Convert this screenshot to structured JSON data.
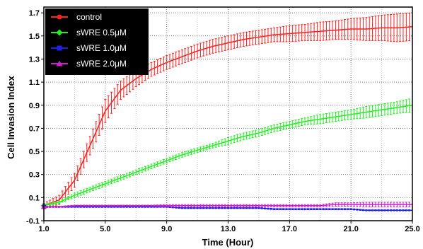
{
  "chart_data": {
    "type": "line",
    "xlabel": "Time (Hour)",
    "ylabel": "Cell Invasion Index",
    "xlim": [
      1.0,
      25.0
    ],
    "ylim": [
      -0.1,
      1.75
    ],
    "x_ticks": [
      "1.0",
      "5.0",
      "9.0",
      "13.0",
      "17.0",
      "21.0",
      "25.0"
    ],
    "y_ticks": [
      "-0.1",
      "0.1",
      "0.3",
      "0.5",
      "0.7",
      "0.9",
      "1.1",
      "1.3",
      "1.5",
      "1.7"
    ],
    "grid": true,
    "legend_position": "top-left",
    "background": "#ffffff",
    "legend_background": "#000000",
    "series": [
      {
        "name": "control",
        "color": "#ff2020",
        "marker": "circle",
        "x": [
          1,
          2,
          3,
          4,
          5,
          6,
          7,
          8,
          9,
          10,
          11,
          12,
          13,
          14,
          15,
          16,
          17,
          18,
          19,
          20,
          21,
          22,
          23,
          24,
          25
        ],
        "y": [
          0.03,
          0.08,
          0.25,
          0.55,
          0.85,
          1.03,
          1.13,
          1.21,
          1.27,
          1.32,
          1.37,
          1.41,
          1.44,
          1.47,
          1.49,
          1.51,
          1.52,
          1.53,
          1.54,
          1.55,
          1.56,
          1.56,
          1.57,
          1.57,
          1.58
        ],
        "err": [
          0.02,
          0.04,
          0.06,
          0.08,
          0.1,
          0.08,
          0.07,
          0.06,
          0.06,
          0.06,
          0.06,
          0.06,
          0.06,
          0.06,
          0.06,
          0.06,
          0.07,
          0.07,
          0.08,
          0.08,
          0.09,
          0.1,
          0.11,
          0.12,
          0.12
        ]
      },
      {
        "name": "sWRE 0.5μM",
        "color": "#22ee22",
        "marker": "diamond",
        "x": [
          1,
          2,
          3,
          4,
          5,
          6,
          7,
          8,
          9,
          10,
          11,
          12,
          13,
          14,
          15,
          16,
          17,
          18,
          19,
          20,
          21,
          22,
          23,
          24,
          25
        ],
        "y": [
          0.03,
          0.06,
          0.12,
          0.17,
          0.22,
          0.27,
          0.32,
          0.37,
          0.42,
          0.47,
          0.51,
          0.55,
          0.59,
          0.63,
          0.66,
          0.7,
          0.73,
          0.76,
          0.78,
          0.8,
          0.82,
          0.84,
          0.86,
          0.88,
          0.9
        ],
        "err": [
          0.01,
          0.01,
          0.02,
          0.02,
          0.02,
          0.02,
          0.02,
          0.02,
          0.02,
          0.02,
          0.02,
          0.02,
          0.03,
          0.03,
          0.03,
          0.03,
          0.03,
          0.03,
          0.04,
          0.04,
          0.04,
          0.05,
          0.05,
          0.05,
          0.06
        ]
      },
      {
        "name": "sWRE 1.0μM",
        "color": "#2020ee",
        "marker": "square",
        "x": [
          1,
          2,
          3,
          4,
          5,
          6,
          7,
          8,
          9,
          10,
          11,
          12,
          13,
          14,
          15,
          16,
          17,
          18,
          19,
          20,
          21,
          22,
          23,
          24,
          25
        ],
        "y": [
          0.02,
          0.02,
          0.02,
          0.02,
          0.02,
          0.02,
          0.02,
          0.02,
          0.02,
          0.01,
          0.01,
          0.01,
          0.01,
          0.01,
          0.01,
          0.0,
          0.0,
          0.0,
          0.0,
          0.0,
          0.0,
          -0.01,
          -0.01,
          -0.01,
          -0.01
        ],
        "err": [
          0.005,
          0.005,
          0.005,
          0.005,
          0.005,
          0.005,
          0.005,
          0.005,
          0.005,
          0.005,
          0.005,
          0.005,
          0.005,
          0.005,
          0.005,
          0.005,
          0.005,
          0.005,
          0.005,
          0.005,
          0.005,
          0.005,
          0.005,
          0.005,
          0.005
        ]
      },
      {
        "name": "sWRE 2.0μM",
        "color": "#cc22cc",
        "marker": "triangle",
        "x": [
          1,
          2,
          3,
          4,
          5,
          6,
          7,
          8,
          9,
          10,
          11,
          12,
          13,
          14,
          15,
          16,
          17,
          18,
          19,
          20,
          21,
          22,
          23,
          24,
          25
        ],
        "y": [
          0.02,
          0.02,
          0.03,
          0.03,
          0.03,
          0.03,
          0.03,
          0.03,
          0.03,
          0.03,
          0.03,
          0.03,
          0.03,
          0.03,
          0.03,
          0.03,
          0.03,
          0.03,
          0.03,
          0.04,
          0.04,
          0.04,
          0.04,
          0.04,
          0.04
        ],
        "err": [
          0.005,
          0.005,
          0.005,
          0.005,
          0.005,
          0.005,
          0.005,
          0.005,
          0.01,
          0.01,
          0.01,
          0.01,
          0.01,
          0.01,
          0.01,
          0.01,
          0.01,
          0.01,
          0.01,
          0.015,
          0.015,
          0.02,
          0.02,
          0.02,
          0.02
        ]
      }
    ]
  }
}
